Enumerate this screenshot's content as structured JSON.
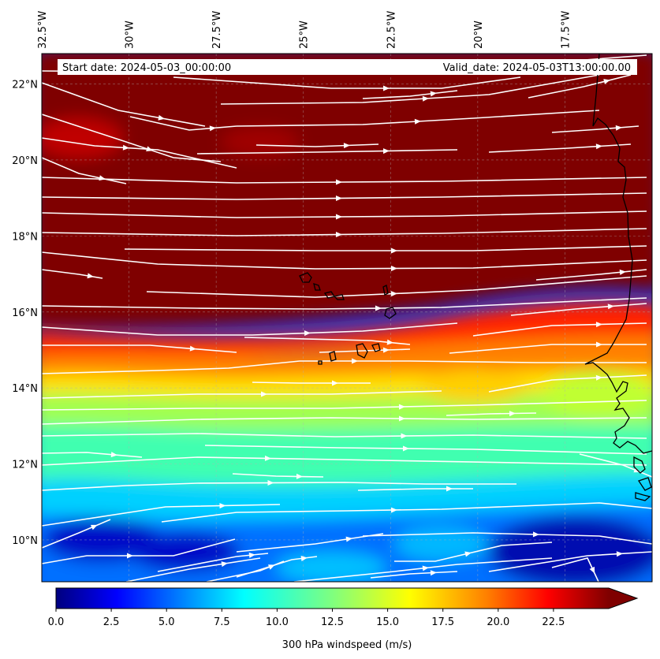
{
  "map": {
    "start_label": "Start date: 2024-05-03_00:00:00",
    "valid_label": "Valid_date: 2024-05-03T13:00:00.00",
    "lon_ticks": [
      "32.5°W",
      "30°W",
      "27.5°W",
      "25°W",
      "22.5°W",
      "20°W",
      "17.5°W"
    ],
    "lat_ticks": [
      "22°N",
      "20°N",
      "18°N",
      "16°N",
      "14°N",
      "12°N",
      "10°N"
    ],
    "lon_values": [
      -32.5,
      -30,
      -27.5,
      -25,
      -22.5,
      -20,
      -17.5
    ],
    "lat_values": [
      22,
      20,
      18,
      16,
      14,
      12,
      10
    ],
    "extent": {
      "lon_min": -32.5,
      "lon_max": -15.0,
      "lat_min": 8.9,
      "lat_max": 22.8
    },
    "gridlines": true,
    "streamline_color": "#ffffff",
    "coastline_color": "#000000",
    "field": "300 hPa windspeed",
    "wind_direction": "westerly (west to east)"
  },
  "colorbar": {
    "label": "300 hPa windspeed (m/s)",
    "ticks": [
      "0.0",
      "2.5",
      "5.0",
      "7.5",
      "10.0",
      "12.5",
      "15.0",
      "17.5",
      "20.0",
      "22.5"
    ],
    "tick_values": [
      0,
      2.5,
      5,
      7.5,
      10,
      12.5,
      15,
      17.5,
      20,
      22.5
    ],
    "min": 0,
    "max": 25,
    "extend": "max",
    "colormap": "jet",
    "colors": [
      "#00007f",
      "#0000ff",
      "#007fff",
      "#00ffff",
      "#7fff7f",
      "#ffff00",
      "#ff7f00",
      "#ff0000",
      "#7f0000"
    ]
  }
}
